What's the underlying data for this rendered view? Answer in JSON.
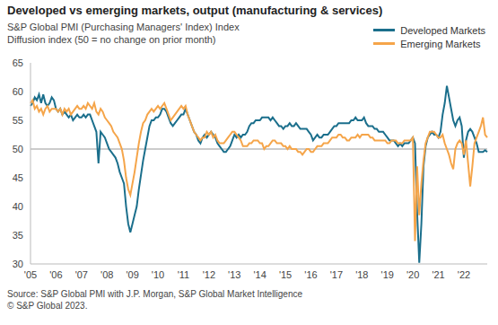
{
  "chart_data": {
    "type": "line",
    "title": "Developed vs emerging markets, output (manufacturing & services)",
    "subtitle": [
      "S&P Global PMI (Purchasing Managers' Index) Index",
      "Diffusion index (50 = no change on prior month)"
    ],
    "source": [
      "Source: S&P Global PMI with J.P. Morgan, S&P Global Market Intelligence",
      "© S&P Global 2023."
    ],
    "categories": [
      "'05",
      null,
      null,
      null,
      null,
      null,
      null,
      null,
      null,
      null,
      null,
      null,
      "'06",
      null,
      null,
      null,
      null,
      null,
      null,
      null,
      null,
      null,
      null,
      null,
      "'07",
      null,
      null,
      null,
      null,
      null,
      null,
      null,
      null,
      null,
      null,
      null,
      "'08",
      null,
      null,
      null,
      null,
      null,
      null,
      null,
      null,
      null,
      null,
      null,
      "'09",
      null,
      null,
      null,
      null,
      null,
      null,
      null,
      null,
      null,
      null,
      null,
      "'10",
      null,
      null,
      null,
      null,
      null,
      null,
      null,
      null,
      null,
      null,
      null,
      "'11",
      null,
      null,
      null,
      null,
      null,
      null,
      null,
      null,
      null,
      null,
      null,
      "'12",
      null,
      null,
      null,
      null,
      null,
      null,
      null,
      null,
      null,
      null,
      null,
      "'13",
      null,
      null,
      null,
      null,
      null,
      null,
      null,
      null,
      null,
      null,
      null,
      "'14",
      null,
      null,
      null,
      null,
      null,
      null,
      null,
      null,
      null,
      null,
      null,
      "'15",
      null,
      null,
      null,
      null,
      null,
      null,
      null,
      null,
      null,
      null,
      null,
      "'16",
      null,
      null,
      null,
      null,
      null,
      null,
      null,
      null,
      null,
      null,
      null,
      "'17",
      null,
      null,
      null,
      null,
      null,
      null,
      null,
      null,
      null,
      null,
      null,
      "'18",
      null,
      null,
      null,
      null,
      null,
      null,
      null,
      null,
      null,
      null,
      null,
      "'19",
      null,
      null,
      null,
      null,
      null,
      null,
      null,
      null,
      null,
      null,
      null,
      "'20",
      null,
      null,
      null,
      null,
      null,
      null,
      null,
      null,
      null,
      null,
      null,
      "'21",
      null,
      null,
      null,
      null,
      null,
      null,
      null,
      null,
      null,
      null,
      null,
      "'22",
      null,
      null,
      null,
      null,
      null,
      null,
      null,
      null,
      null,
      null,
      null
    ],
    "series": [
      {
        "name": "Developed Markets",
        "color": "#1b6f8c",
        "values": [
          57.5,
          58,
          59,
          58.5,
          59.5,
          58,
          59.5,
          58,
          57.5,
          58,
          59,
          58.5,
          57,
          56.5,
          57,
          56,
          56.5,
          56,
          55.5,
          56,
          55,
          55.5,
          56,
          55.5,
          55.5,
          56,
          55.5,
          56,
          56,
          55,
          54,
          53,
          47.5,
          53,
          52.5,
          52,
          51,
          50,
          49.5,
          49,
          48.5,
          47.5,
          46,
          45,
          44,
          40,
          37,
          35.5,
          37,
          38.5,
          40,
          43,
          45.5,
          48,
          50,
          52,
          54,
          55,
          55,
          55.5,
          55.5,
          56,
          57,
          57,
          56.5,
          55.5,
          54.5,
          54,
          54.5,
          55,
          55.5,
          56,
          56,
          57,
          56,
          55,
          54,
          53,
          52.5,
          51.5,
          51,
          52,
          52.5,
          52,
          52.5,
          53,
          52.5,
          52,
          51,
          50.5,
          50,
          49.5,
          49.5,
          50,
          50.5,
          51.5,
          52.5,
          52,
          52.5,
          52,
          52.5,
          52.5,
          53,
          54,
          54.5,
          54.5,
          55,
          55,
          55,
          55.5,
          55.5,
          55.5,
          55.5,
          55,
          55.5,
          55,
          54.5,
          54,
          54,
          53.5,
          54,
          54,
          54.5,
          54,
          54,
          54.5,
          54,
          53.5,
          53.5,
          53.5,
          53.5,
          53,
          52.5,
          51.5,
          52,
          52.5,
          52,
          52,
          52.5,
          52.5,
          52.5,
          53,
          53.5,
          54,
          54,
          54.5,
          54.5,
          54.5,
          54.5,
          54.5,
          54.5,
          55,
          55,
          55.5,
          55,
          55,
          55,
          55.5,
          54.5,
          54,
          54,
          54,
          53.5,
          53.5,
          53,
          53,
          53,
          52.5,
          52,
          51.5,
          51.5,
          51.5,
          51,
          50.5,
          51,
          50.5,
          51,
          51,
          51,
          51.5,
          52,
          51,
          39,
          30.2,
          37,
          47,
          50.5,
          52,
          52.5,
          53,
          52.5,
          52.5,
          52,
          53,
          56,
          58,
          61,
          59,
          57,
          55,
          54,
          55,
          55.5,
          54,
          48.5,
          51.5,
          53,
          53.5,
          53,
          52,
          51,
          49.5,
          49.5,
          49.5,
          49.8,
          49.5
        ]
      },
      {
        "name": "Emerging Markets",
        "color": "#f5a54a",
        "values": [
          58,
          58.5,
          57,
          57.5,
          56.5,
          57,
          56,
          57,
          57.5,
          56.5,
          57,
          57,
          57,
          56.5,
          57,
          56,
          57,
          56.5,
          57,
          56,
          56.5,
          57,
          57.5,
          57,
          57,
          57.5,
          57,
          58,
          57.5,
          57,
          58,
          56.5,
          56,
          57,
          56.5,
          55.5,
          55,
          54.5,
          54,
          53,
          52.5,
          52,
          51,
          50,
          48,
          45,
          43,
          42,
          44,
          46,
          48.5,
          51,
          53,
          54.5,
          55,
          56,
          56.5,
          57,
          56.5,
          57,
          57.5,
          57,
          57.5,
          58,
          57,
          56,
          55,
          55.5,
          56,
          56.5,
          57,
          57.5,
          57,
          57.5,
          56,
          55,
          54,
          53,
          52.5,
          52,
          51.5,
          52,
          52,
          53,
          52.5,
          53,
          52,
          52.5,
          51.5,
          51,
          51,
          51,
          51.5,
          52,
          52.5,
          53,
          53,
          52.5,
          52,
          51.5,
          50.5,
          50.5,
          50.5,
          51,
          51,
          51.5,
          51.5,
          51.5,
          51,
          51,
          50,
          50.5,
          50.5,
          51,
          51.5,
          51.5,
          51,
          51,
          51,
          50.5,
          50.5,
          50,
          50.5,
          50,
          50,
          50,
          49.5,
          49.5,
          49,
          49.5,
          50,
          50,
          49.5,
          49.5,
          50,
          50.5,
          50.5,
          50.5,
          51,
          51,
          51,
          51.5,
          52,
          52,
          52,
          52.5,
          52.5,
          52,
          52,
          51.5,
          51.5,
          52,
          52,
          52,
          52.5,
          52,
          52.5,
          52.5,
          52.5,
          52.5,
          52,
          52,
          51.5,
          51.5,
          51.5,
          51.5,
          51.5,
          51.5,
          51,
          51,
          51.5,
          51.5,
          51.5,
          51,
          51,
          51,
          51.5,
          51.5,
          51.5,
          51.5,
          52,
          34,
          47,
          38.5,
          44,
          48,
          51,
          52,
          53,
          53,
          53,
          52.5,
          52,
          52,
          52.5,
          51,
          50,
          49,
          47.5,
          46.5,
          50,
          51,
          51.5,
          51,
          49,
          51.5,
          47.5,
          43.5,
          47,
          51,
          52,
          53,
          54,
          55.5,
          52.5,
          52
        ]
      }
    ],
    "ylim": [
      30,
      65
    ],
    "yticks": [
      30,
      35,
      40,
      45,
      50,
      55,
      60,
      65
    ],
    "reference_line": 50,
    "grid": false,
    "legend": "top-right"
  }
}
